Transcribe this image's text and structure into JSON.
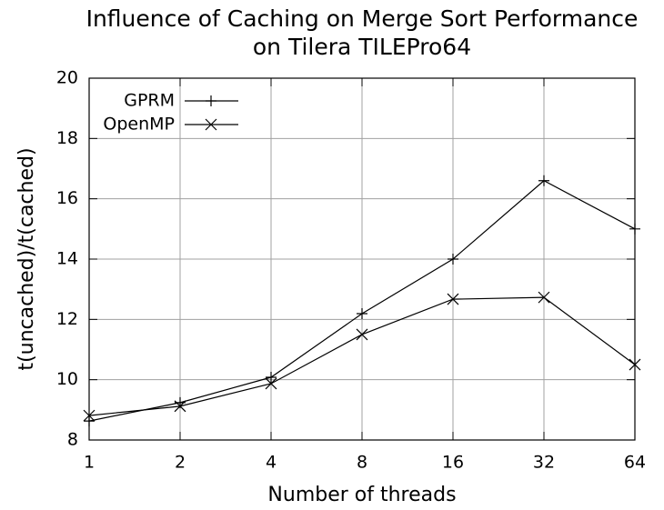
{
  "chart_data": {
    "type": "line",
    "title": [
      "Influence of Caching on Merge Sort Performance",
      "on Tilera TILEPro64"
    ],
    "xlabel": "Number of threads",
    "ylabel": "t(uncached)/t(cached)",
    "x": [
      1,
      2,
      4,
      8,
      16,
      32,
      64
    ],
    "xlog": true,
    "xlim": [
      1,
      64
    ],
    "xticks": [
      1,
      2,
      4,
      8,
      16,
      32,
      64
    ],
    "ylim": [
      8,
      20
    ],
    "yticks": [
      8,
      10,
      12,
      14,
      16,
      18,
      20
    ],
    "grid": true,
    "legend": "top-left",
    "series": [
      {
        "name": "GPRM",
        "color": "#000000",
        "marker": "+",
        "values": [
          8.63,
          9.24,
          10.08,
          12.19,
          14.0,
          16.6,
          15.0
        ]
      },
      {
        "name": "OpenMP",
        "color": "#000000",
        "marker": "x",
        "values": [
          8.81,
          9.12,
          9.87,
          11.5,
          12.67,
          12.73,
          10.5
        ]
      }
    ]
  }
}
